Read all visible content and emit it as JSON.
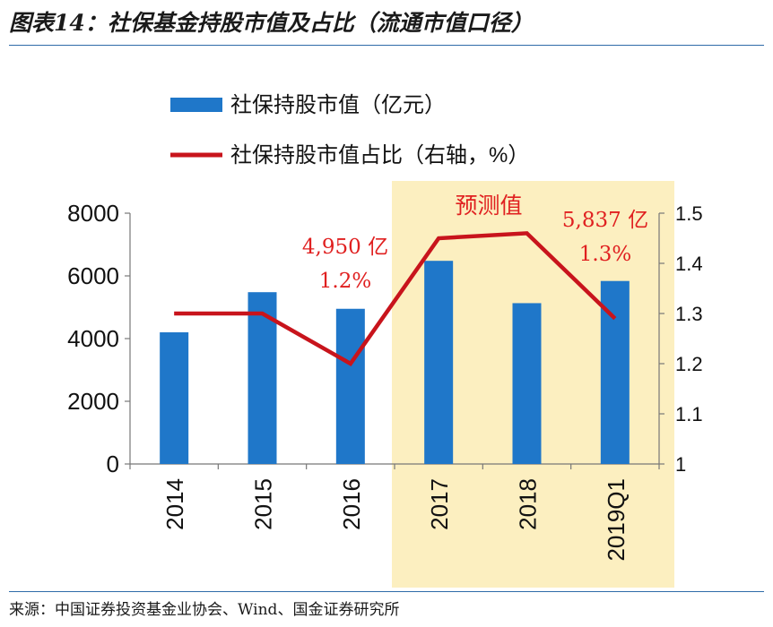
{
  "title": "图表14：社保基金持股市值及占比（流通市值口径）",
  "source": "来源：中国证券投资基金业协会、Wind、国金证券研究所",
  "colors": {
    "bar": "#1f77c9",
    "line": "#c8141c",
    "forecast_band": "#fcefc0",
    "annotation": "#e02020",
    "rule": "#2e6ba8"
  },
  "chart_data": {
    "type": "bar",
    "categories": [
      "2014",
      "2015",
      "2016",
      "2017",
      "2018",
      "2019Q1"
    ],
    "series": [
      {
        "name": "社保持股市值（亿元）",
        "type": "bar",
        "axis": "left",
        "values": [
          4200,
          5480,
          4950,
          6480,
          5130,
          5837
        ]
      },
      {
        "name": "社保持股市值占比（右轴，%）",
        "type": "line",
        "axis": "right",
        "values": [
          1.3,
          1.3,
          1.2,
          1.45,
          1.46,
          1.29
        ]
      }
    ],
    "y_left": {
      "min": 0,
      "max": 8000,
      "ticks": [
        "0",
        "2000",
        "4000",
        "6000",
        "8000"
      ]
    },
    "y_right": {
      "min": 1.0,
      "max": 1.5,
      "ticks": [
        "1",
        "1.1",
        "1.2",
        "1.3",
        "1.4",
        "1.5"
      ]
    },
    "forecast_region": {
      "label": "预测值",
      "from": "2017",
      "to": "2019Q1"
    },
    "annotations": [
      {
        "category": "2016",
        "value_text": "4,950 亿",
        "share_text": "1.2%"
      },
      {
        "category": "2019Q1",
        "value_text": "5,837 亿",
        "share_text": "1.3%"
      }
    ]
  }
}
